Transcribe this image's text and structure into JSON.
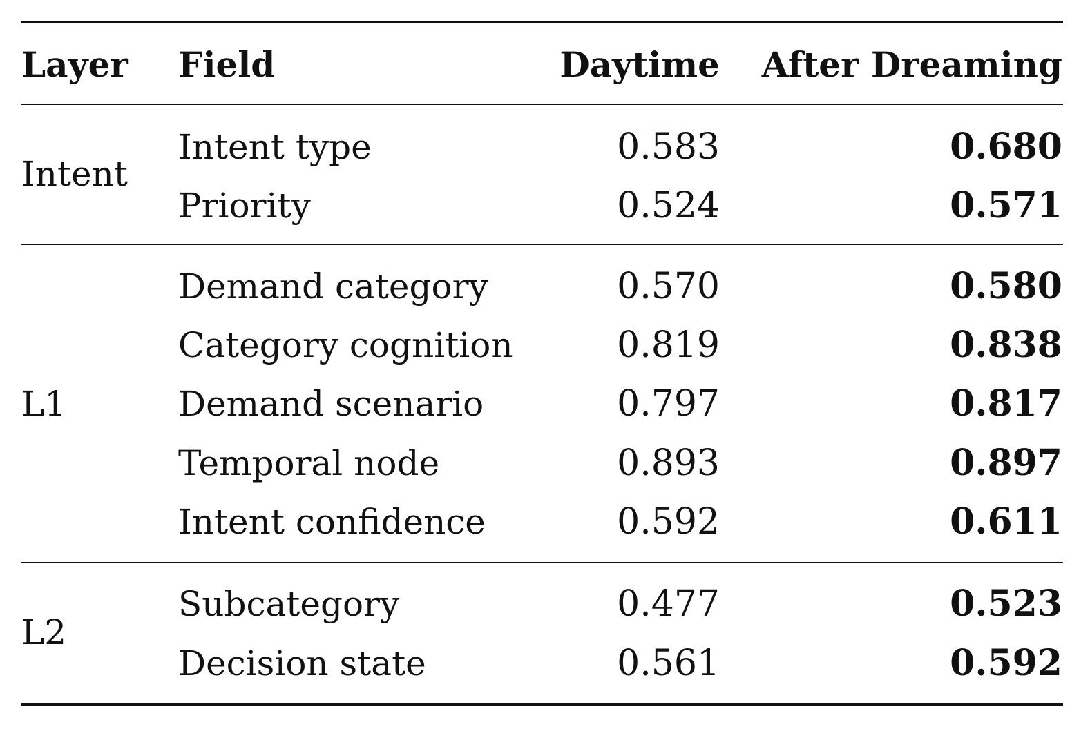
{
  "table": {
    "headers": {
      "layer": "Layer",
      "field": "Field",
      "daytime": "Daytime",
      "after": "After Dreaming"
    },
    "groups": [
      {
        "layer": "Intent",
        "rows": [
          {
            "field": "Intent type",
            "daytime": "0.583",
            "after": "0.680"
          },
          {
            "field": "Priority",
            "daytime": "0.524",
            "after": "0.571"
          }
        ]
      },
      {
        "layer": "L1",
        "rows": [
          {
            "field": "Demand category",
            "daytime": "0.570",
            "after": "0.580"
          },
          {
            "field": "Category cognition",
            "daytime": "0.819",
            "after": "0.838"
          },
          {
            "field": "Demand scenario",
            "daytime": "0.797",
            "after": "0.817"
          },
          {
            "field": "Temporal node",
            "daytime": "0.893",
            "after": "0.897"
          },
          {
            "field": "Intent confidence",
            "daytime": "0.592",
            "after": "0.611"
          }
        ]
      },
      {
        "layer": "L2",
        "rows": [
          {
            "field": "Subcategory",
            "daytime": "0.477",
            "after": "0.523"
          },
          {
            "field": "Decision state",
            "daytime": "0.561",
            "after": "0.592"
          }
        ]
      }
    ]
  }
}
